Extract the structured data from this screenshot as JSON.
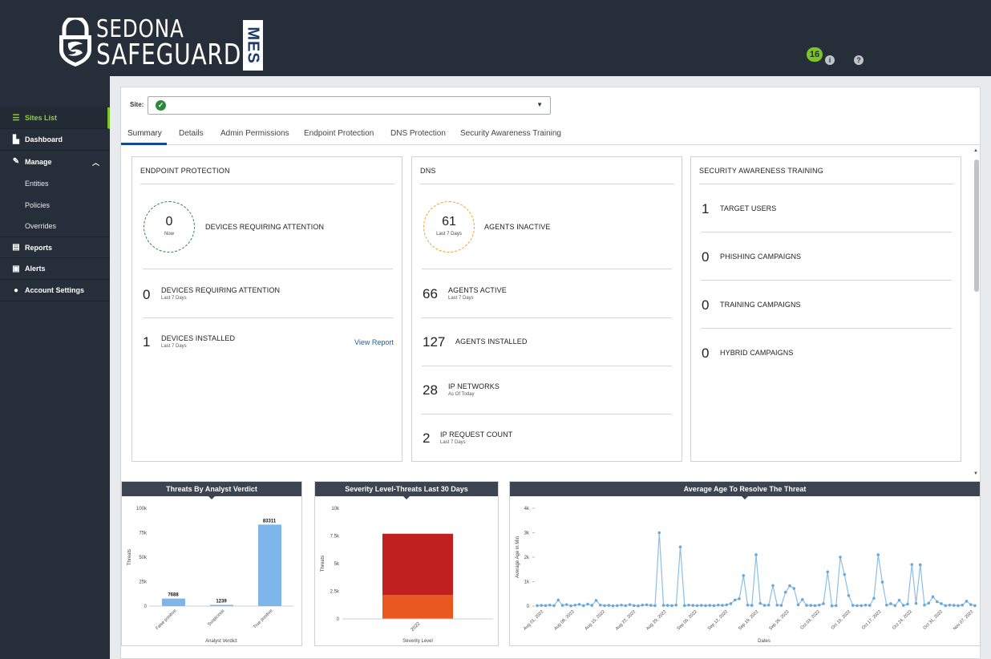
{
  "header": {
    "logo_line1": "SEDONA",
    "logo_line2": "SAFEGUARD",
    "logo_badge": "MES",
    "notification_count": "16",
    "info_icon": "info-icon",
    "help_icon": "help-icon"
  },
  "sidebar": {
    "items": [
      {
        "label": "Sites List",
        "icon": "list-icon"
      },
      {
        "label": "Dashboard",
        "icon": "chart-icon"
      },
      {
        "label": "Manage",
        "icon": "wrench-icon"
      },
      {
        "label": "Entities"
      },
      {
        "label": "Policies"
      },
      {
        "label": "Overrides"
      },
      {
        "label": "Reports",
        "icon": "report-icon"
      },
      {
        "label": "Alerts",
        "icon": "alert-icon"
      },
      {
        "label": "Account Settings",
        "icon": "user-icon"
      }
    ]
  },
  "site": {
    "label": "Site:",
    "value": ""
  },
  "tabs": [
    "Summary",
    "Details",
    "Admin Permissions",
    "Endpoint Protection",
    "DNS Protection",
    "Security Awareness Training"
  ],
  "endpoint": {
    "title": "ENDPOINT PROTECTION",
    "ring_value": "0",
    "ring_sub": "Now",
    "ring_label": "DEVICES REQUIRING ATTENTION",
    "m1_value": "0",
    "m1_label": "DEVICES REQUIRING ATTENTION",
    "m1_sub": "Last 7 Days",
    "m2_value": "1",
    "m2_label": "DEVICES INSTALLED",
    "m2_sub": "Last 7 Days",
    "view_report": "View Report"
  },
  "dns": {
    "title": "DNS",
    "ring_value": "61",
    "ring_sub": "Last 7 Days",
    "ring_label": "AGENTS INACTIVE",
    "m1_value": "66",
    "m1_label": "AGENTS ACTIVE",
    "m1_sub": "Last 7 Days",
    "m2_value": "127",
    "m2_label": "AGENTS INSTALLED",
    "m3_value": "28",
    "m3_label": "IP NETWORKS",
    "m3_sub": "As Of Today",
    "m4_value": "2",
    "m4_label": "IP REQUEST COUNT",
    "m4_sub": "Last 7 Days"
  },
  "sat": {
    "title": "SECURITY AWARENESS TRAINING",
    "rows": [
      {
        "value": "1",
        "label": "TARGET USERS"
      },
      {
        "value": "0",
        "label": "PHISHING CAMPAIGNS"
      },
      {
        "value": "0",
        "label": "TRAINING CAMPAIGNS"
      },
      {
        "value": "0",
        "label": "HYBRID CAMPAIGNS"
      }
    ]
  },
  "colors": {
    "accent": "#7dc32a",
    "ring_green": "#2a8a3c",
    "ring_orange": "#f0a030",
    "bar_blue": "#7eb6eb",
    "sev_high": "#c0201f",
    "sev_med": "#e9581e"
  },
  "chart_data": [
    {
      "type": "bar",
      "title": "Threats By Analyst Verdict",
      "xlabel": "Analyst Verdict",
      "ylabel": "Threats",
      "categories": [
        "False positive",
        "Suspicious",
        "True positive"
      ],
      "values": [
        7688,
        1239,
        83311
      ],
      "ylim": [
        0,
        100000
      ],
      "yticks": [
        "0",
        "25k",
        "50k",
        "75k",
        "100k"
      ]
    },
    {
      "type": "bar",
      "title": "Severity Level-Threats Last 30 Days",
      "xlabel": "Severity Level",
      "ylabel": "Threats",
      "categories": [
        "2022"
      ],
      "series": [
        {
          "values": [
            2150
          ]
        },
        {
          "values": [
            5550
          ]
        }
      ],
      "ylim": [
        0,
        10000
      ],
      "yticks": [
        "0",
        "2.5k",
        "5k",
        "7.5k",
        "10k"
      ]
    },
    {
      "type": "line",
      "title": "Average Age To Resolve The Threat",
      "xlabel": "Dates",
      "ylabel": "Average Age in Min",
      "ylim": [
        0,
        4000
      ],
      "yticks": [
        "0",
        "1k",
        "2k",
        "3k",
        "4k"
      ],
      "xticks": [
        "Aug 01, 2022",
        "Aug 08, 2022",
        "Aug 15, 2022",
        "Aug 22, 2022",
        "Aug 29, 2022",
        "Sep 05, 2022",
        "Sep 12, 2022",
        "Sep 19, 2022",
        "Sep 26, 2022",
        "Oct 03, 2022",
        "Oct 10, 2022",
        "Oct 17, 2022",
        "Oct 24, 2022",
        "Oct 31, 2022",
        "Nov 07, 2022"
      ],
      "values": [
        20,
        30,
        20,
        40,
        20,
        250,
        30,
        60,
        10,
        40,
        70,
        20,
        80,
        30,
        230,
        40,
        20,
        30,
        10,
        20,
        40,
        20,
        60,
        20,
        10,
        40,
        50,
        30,
        20,
        3000,
        30,
        30,
        20,
        40,
        2420,
        20,
        40,
        30,
        20,
        30,
        20,
        30,
        20,
        40,
        30,
        50,
        100,
        250,
        300,
        1250,
        40,
        30,
        2100,
        110,
        30,
        40,
        840,
        40,
        30,
        570,
        830,
        720,
        50,
        270,
        30,
        30,
        20,
        40,
        100,
        1400,
        10,
        20,
        2000,
        1290,
        430,
        30,
        20,
        20,
        40,
        30,
        320,
        2100,
        980,
        40,
        100,
        20,
        240,
        30,
        80,
        1700,
        110,
        1690,
        40,
        120,
        380,
        180,
        100,
        20,
        40,
        30,
        20,
        40,
        200,
        60,
        20
      ]
    }
  ]
}
